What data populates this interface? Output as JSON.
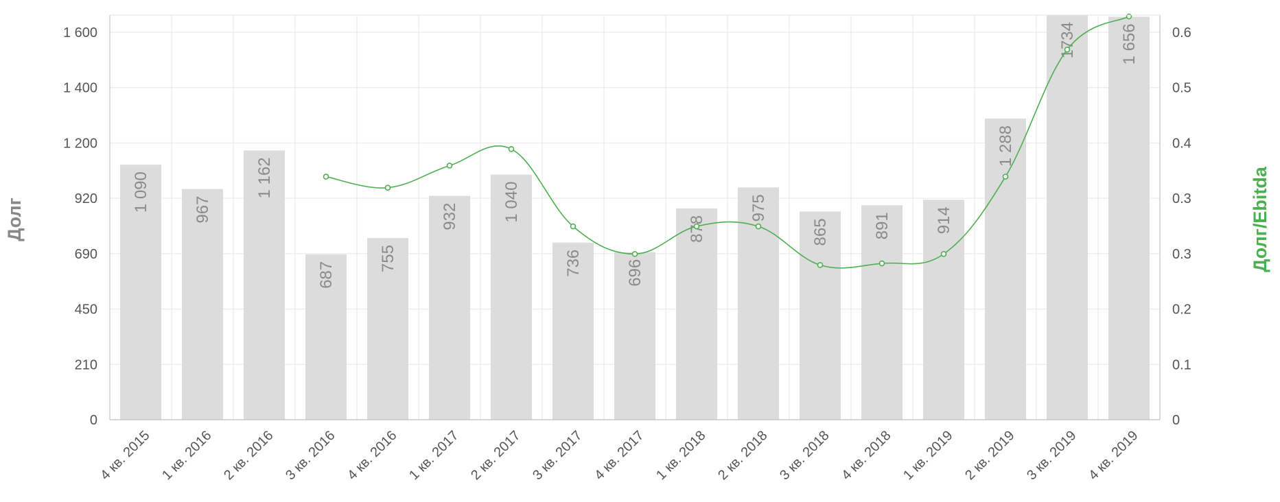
{
  "chart_data": {
    "type": "bar",
    "categories": [
      "4 кв. 2015",
      "1 кв. 2016",
      "2 кв. 2016",
      "3 кв. 2016",
      "4 кв. 2016",
      "1 кв. 2017",
      "2 кв. 2017",
      "3 кв. 2017",
      "4 кв. 2017",
      "1 кв. 2018",
      "2 кв. 2018",
      "3 кв. 2018",
      "4 кв. 2018",
      "1 кв. 2019",
      "2 кв. 2019",
      "3 кв. 2019",
      "4 кв. 2019"
    ],
    "series": [
      {
        "type": "bar",
        "axis": "left",
        "values": [
          1090,
          967,
          1162,
          687,
          755,
          932,
          1040,
          736,
          696,
          878,
          975,
          865,
          891,
          914,
          1288,
          1734,
          1656
        ],
        "labels": [
          "1 090",
          "967",
          "1 162",
          "687",
          "755",
          "932",
          "1 040",
          "736",
          "696",
          "878",
          "975",
          "865",
          "891",
          "914",
          "1 288",
          "1734",
          "1 656"
        ],
        "color": "#dcdcdc"
      },
      {
        "type": "line",
        "axis": "right",
        "values": [
          null,
          null,
          null,
          0.44,
          0.42,
          0.46,
          0.49,
          0.35,
          0.3,
          0.35,
          0.35,
          0.28,
          0.283,
          0.3,
          0.44,
          0.67,
          0.73
        ],
        "color": "#4caf50"
      }
    ],
    "y_left": {
      "title": "Долг",
      "ticks": [
        0,
        210,
        450,
        690,
        920,
        1200,
        1400,
        1600
      ],
      "tick_labels": [
        "0",
        "210",
        "450",
        "690",
        "920",
        "1 200",
        "1 400",
        "1 600"
      ],
      "title_color": "#888888"
    },
    "y_right": {
      "title": "Долг/Ebitda",
      "tick_labels": [
        "0",
        "0.1",
        "0.2",
        "0.3",
        "0.3",
        "0.4",
        "0.5",
        "0.6"
      ],
      "title_color": "#4caf50",
      "ylim": [
        0,
        0.73
      ]
    },
    "grid": true
  }
}
